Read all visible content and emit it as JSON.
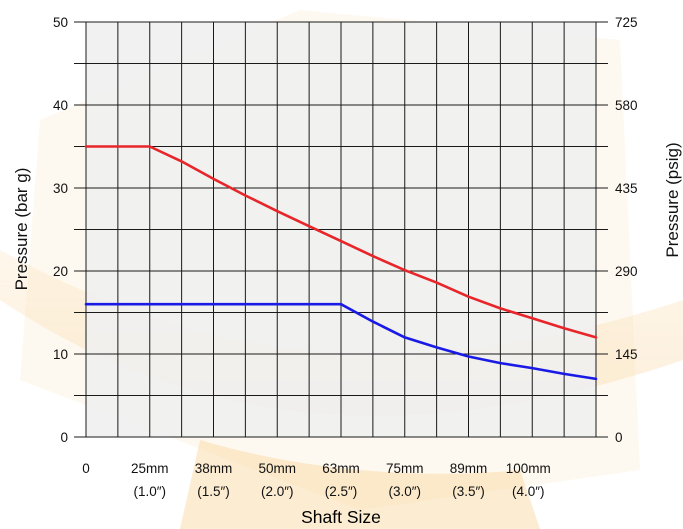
{
  "chart_data": {
    "type": "line",
    "xlabel": "Shaft Size",
    "ylabel_left": "Pressure (bar g)",
    "ylabel_right": "Pressure (psig)",
    "x_ticks": [
      {
        "top": "0",
        "bottom": ""
      },
      {
        "top": "25mm",
        "bottom": "(1.0″)"
      },
      {
        "top": "38mm",
        "bottom": "(1.5″)"
      },
      {
        "top": "50mm",
        "bottom": "(2.0″)"
      },
      {
        "top": "63mm",
        "bottom": "(2.5″)"
      },
      {
        "top": "75mm",
        "bottom": "(3.0″)"
      },
      {
        "top": "89mm",
        "bottom": "(3.5″)"
      },
      {
        "top": "100mm",
        "bottom": "(4.0″)"
      }
    ],
    "xlim": [
      0,
      4.0
    ],
    "ylim": [
      0,
      50
    ],
    "y_ticks_left": [
      "0",
      "10",
      "20",
      "30",
      "40",
      "50"
    ],
    "y_ticks_right": [
      "0",
      "145",
      "290",
      "435",
      "580",
      "725"
    ],
    "grid": true,
    "series": [
      {
        "color": "#e8262a",
        "x": [
          0,
          0.5,
          0.75,
          1.0,
          1.25,
          1.5,
          1.75,
          2.0,
          2.25,
          2.5,
          2.75,
          3.0,
          3.25,
          3.5,
          3.75,
          4.0
        ],
        "y": [
          35,
          35,
          33.2,
          31.1,
          29.1,
          27.2,
          25.4,
          23.6,
          21.8,
          20.1,
          18.6,
          16.9,
          15.5,
          14.3,
          13.1,
          12.0
        ]
      },
      {
        "color": "#1a1ae6",
        "x": [
          0,
          0.5,
          1.0,
          1.5,
          2.0,
          2.25,
          2.5,
          2.75,
          3.0,
          3.25,
          3.5,
          3.75,
          4.0
        ],
        "y": [
          16,
          16,
          16,
          16,
          16,
          13.9,
          12.0,
          10.8,
          9.7,
          8.9,
          8.3,
          7.6,
          7.0
        ]
      }
    ]
  }
}
